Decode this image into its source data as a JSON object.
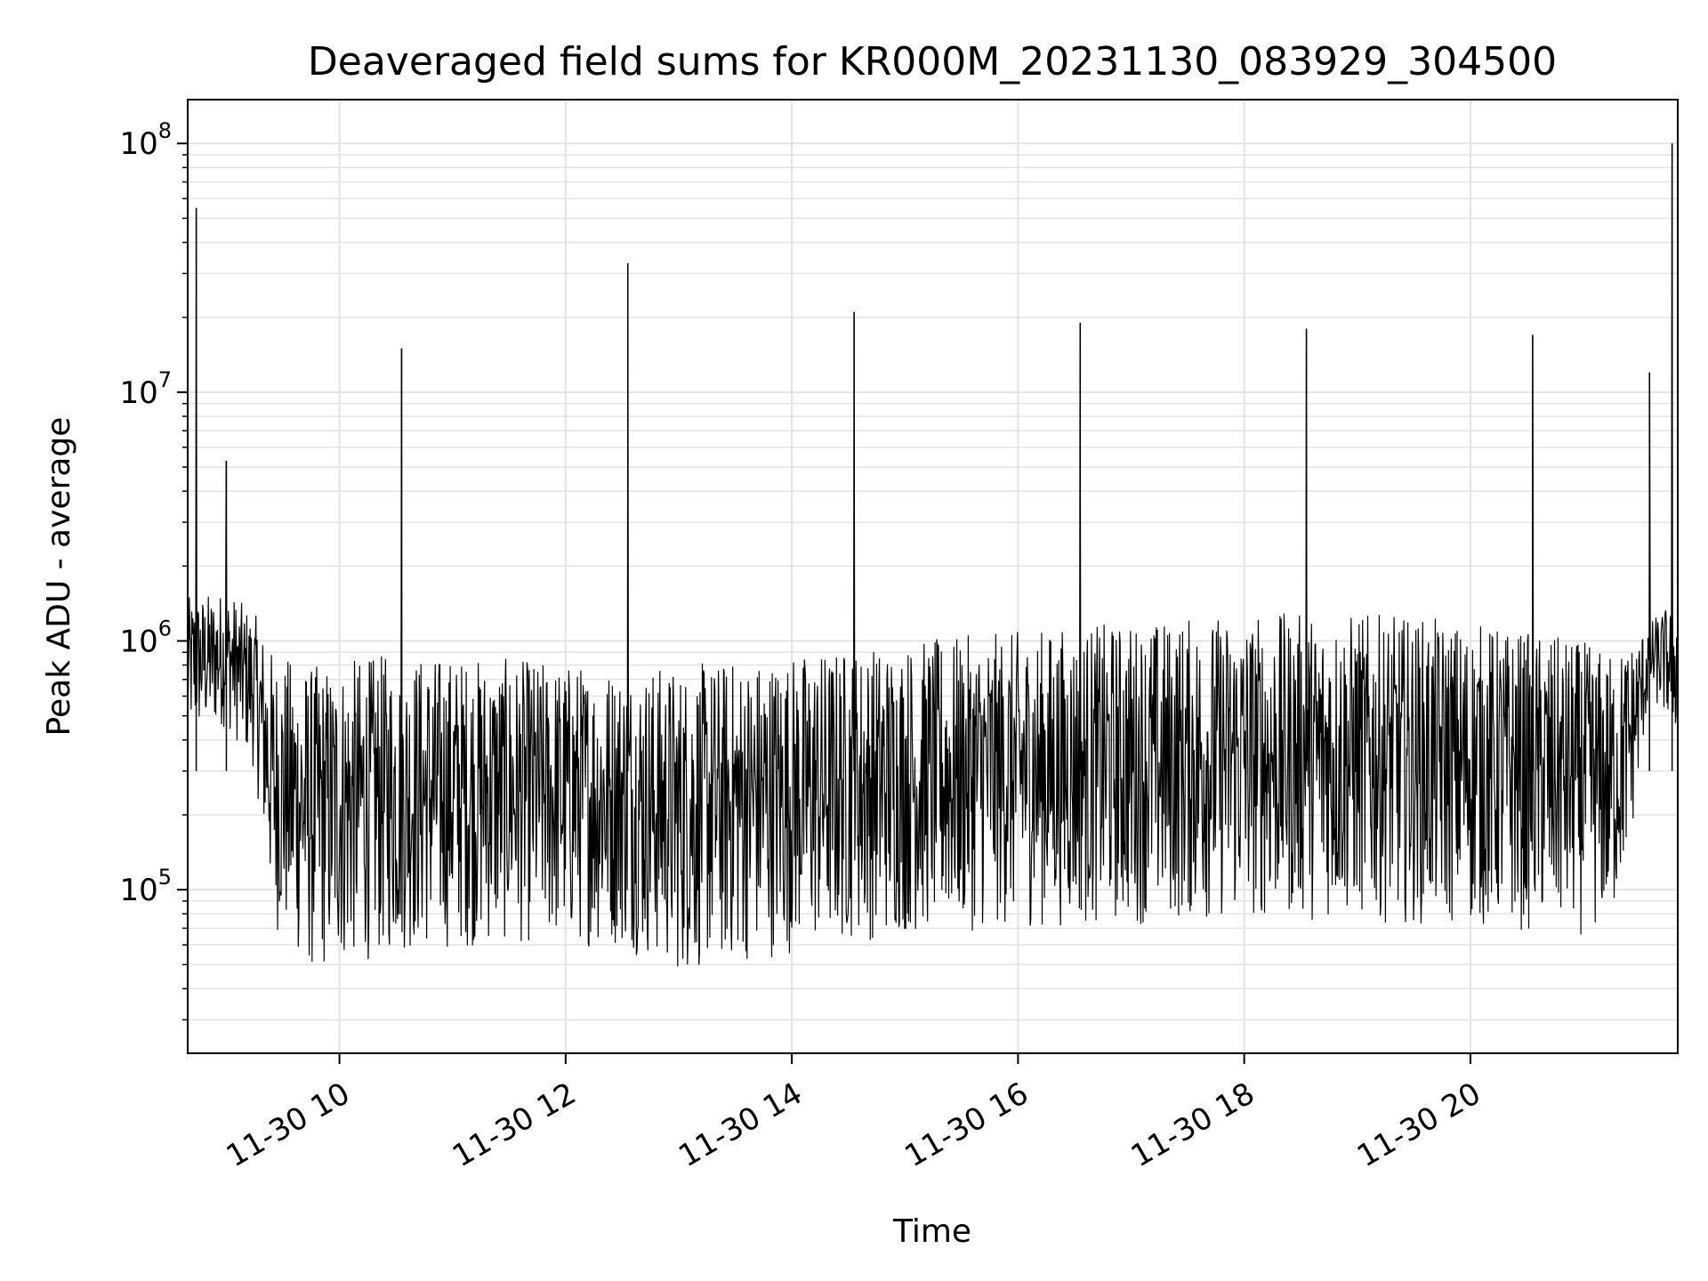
{
  "chart_data": {
    "type": "line",
    "title": "Deaveraged field sums for KR000M_20231130_083929_304500",
    "xlabel": "Time",
    "ylabel": "Peak ADU - average",
    "yscale": "log",
    "grid": true,
    "line_color": "#000000",
    "grid_color": "#e3e3e3",
    "xlim": [
      "2023-11-30 08:39:29",
      "2023-11-30 21:50:00"
    ],
    "ylim": [
      22000,
      150000000
    ],
    "x_ticks": [
      {
        "t": "2023-11-30 10:00",
        "label": "11-30 10"
      },
      {
        "t": "2023-11-30 12:00",
        "label": "11-30 12"
      },
      {
        "t": "2023-11-30 14:00",
        "label": "11-30 14"
      },
      {
        "t": "2023-11-30 16:00",
        "label": "11-30 16"
      },
      {
        "t": "2023-11-30 18:00",
        "label": "11-30 18"
      },
      {
        "t": "2023-11-30 20:00",
        "label": "11-30 20"
      }
    ],
    "y_ticks": [
      {
        "value": 100000,
        "base": "10",
        "exp": "5"
      },
      {
        "value": 1000000,
        "base": "10",
        "exp": "6"
      },
      {
        "value": 10000000,
        "base": "10",
        "exp": "7"
      },
      {
        "value": 100000000,
        "base": "10",
        "exp": "8"
      }
    ],
    "envelope": {
      "times": [
        "2023-11-30 08:39:29",
        "2023-11-30 09:00",
        "2023-11-30 09:15",
        "2023-11-30 09:25",
        "2023-11-30 09:45",
        "2023-11-30 10:30",
        "2023-11-30 11:30",
        "2023-11-30 12:30",
        "2023-11-30 13:00",
        "2023-11-30 14:00",
        "2023-11-30 15:00",
        "2023-11-30 16:00",
        "2023-11-30 17:00",
        "2023-11-30 18:00",
        "2023-11-30 19:00",
        "2023-11-30 20:00",
        "2023-11-30 21:00",
        "2023-11-30 21:15",
        "2023-11-30 21:25",
        "2023-11-30 21:35",
        "2023-11-30 21:50:00"
      ],
      "low": [
        400000,
        450000,
        300000,
        70000,
        45000,
        55000,
        60000,
        58000,
        45000,
        55000,
        65000,
        70000,
        72000,
        75000,
        75000,
        70000,
        65000,
        70000,
        150000,
        600000,
        400000
      ],
      "high": [
        1500000,
        1600000,
        1300000,
        900000,
        800000,
        900000,
        850000,
        800000,
        800000,
        900000,
        1000000,
        1100000,
        1200000,
        1300000,
        1300000,
        1200000,
        1000000,
        900000,
        1000000,
        1200000,
        1500000
      ]
    },
    "spikes": [
      {
        "t": "2023-11-30 08:44",
        "value": 55000000
      },
      {
        "t": "2023-11-30 09:00",
        "value": 5300000
      },
      {
        "t": "2023-11-30 10:33",
        "value": 15000000
      },
      {
        "t": "2023-11-30 12:33",
        "value": 33000000
      },
      {
        "t": "2023-11-30 14:33",
        "value": 21000000
      },
      {
        "t": "2023-11-30 16:33",
        "value": 19000000
      },
      {
        "t": "2023-11-30 18:33",
        "value": 18000000
      },
      {
        "t": "2023-11-30 20:33",
        "value": 17000000
      },
      {
        "t": "2023-11-30 21:35",
        "value": 12000000
      },
      {
        "t": "2023-11-30 21:47",
        "value": 100000000
      }
    ]
  }
}
